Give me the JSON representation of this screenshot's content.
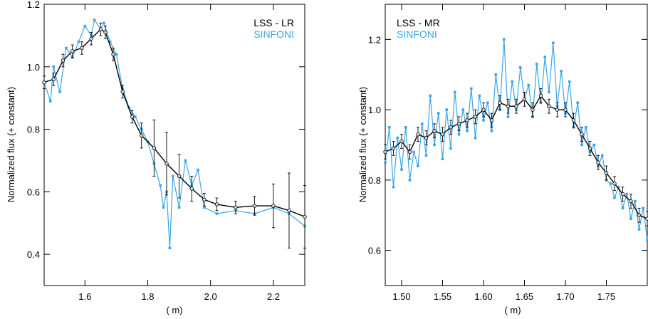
{
  "colors": {
    "lss": "#000000",
    "sinfoni": "#3aa6e6",
    "lss_marker_fill": "#d8d8d8"
  },
  "chart_data": [
    {
      "type": "line",
      "ylabel": "Normalized flux (+ constant)",
      "xlabel": "(  m)",
      "xlim": [
        1.47,
        2.3
      ],
      "ylim": [
        0.3,
        1.2
      ],
      "xticks": [
        1.6,
        1.8,
        2.0,
        2.2
      ],
      "xtick_labels": [
        "1.6",
        "1.8",
        "2.0",
        "2.2"
      ],
      "yticks": [
        0.4,
        0.6,
        0.8,
        1.0,
        1.2
      ],
      "ytick_labels": [
        "0.4",
        "0.6",
        "0.8",
        "1.0",
        "1.2"
      ],
      "legend_position": "top-right",
      "legend": [
        "LSS - LR",
        "SINFONI"
      ],
      "series": [
        {
          "name": "LSS - LR",
          "x": [
            1.47,
            1.5,
            1.53,
            1.56,
            1.59,
            1.62,
            1.65,
            1.665,
            1.69,
            1.72,
            1.75,
            1.78,
            1.82,
            1.86,
            1.9,
            1.94,
            1.98,
            2.02,
            2.08,
            2.14,
            2.2,
            2.25,
            2.3
          ],
          "y": [
            0.95,
            0.96,
            1.02,
            1.05,
            1.06,
            1.09,
            1.12,
            1.11,
            1.04,
            0.92,
            0.84,
            0.78,
            0.74,
            0.69,
            0.65,
            0.61,
            0.575,
            0.56,
            0.55,
            0.555,
            0.555,
            0.54,
            0.52
          ],
          "yerr": [
            0.02,
            0.02,
            0.02,
            0.02,
            0.02,
            0.02,
            0.02,
            0.02,
            0.02,
            0.02,
            0.02,
            0.04,
            0.09,
            0.1,
            0.07,
            0.04,
            0.02,
            0.02,
            0.02,
            0.03,
            0.07,
            0.12,
            0.1
          ]
        },
        {
          "name": "SINFONI",
          "x": [
            1.47,
            1.49,
            1.5,
            1.52,
            1.54,
            1.56,
            1.58,
            1.6,
            1.62,
            1.63,
            1.65,
            1.66,
            1.68,
            1.7,
            1.72,
            1.74,
            1.76,
            1.78,
            1.8,
            1.82,
            1.84,
            1.85,
            1.86,
            1.87,
            1.88,
            1.9,
            1.92,
            1.94,
            1.96,
            1.98,
            2.02,
            2.08,
            2.14,
            2.2,
            2.25,
            2.3
          ],
          "y": [
            0.95,
            0.89,
            1.0,
            0.92,
            1.06,
            1.03,
            1.08,
            1.13,
            1.1,
            1.15,
            1.12,
            1.14,
            1.08,
            1.04,
            0.93,
            0.87,
            0.84,
            0.8,
            0.76,
            0.69,
            0.62,
            0.55,
            0.6,
            0.42,
            0.65,
            0.55,
            0.7,
            0.62,
            0.67,
            0.55,
            0.53,
            0.54,
            0.53,
            0.55,
            0.53,
            0.49
          ]
        }
      ]
    },
    {
      "type": "line",
      "ylabel": "Normalized flux (+ constant)",
      "xlabel": "(  m)",
      "xlim": [
        1.48,
        1.8
      ],
      "ylim": [
        0.5,
        1.3
      ],
      "xticks": [
        1.5,
        1.55,
        1.6,
        1.65,
        1.7,
        1.75
      ],
      "xtick_labels": [
        "1.50",
        "1.55",
        "1.60",
        "1.65",
        "1.70",
        "1.75"
      ],
      "yticks": [
        0.6,
        0.8,
        1.0,
        1.2
      ],
      "ytick_labels": [
        "0.6",
        "0.8",
        "1.0",
        "1.2"
      ],
      "legend_position": "top-left",
      "legend": [
        "LSS - MR",
        "SINFONI"
      ],
      "series": [
        {
          "name": "LSS - MR",
          "x": [
            1.48,
            1.49,
            1.5,
            1.51,
            1.52,
            1.53,
            1.54,
            1.55,
            1.56,
            1.57,
            1.58,
            1.59,
            1.6,
            1.61,
            1.62,
            1.63,
            1.64,
            1.65,
            1.66,
            1.67,
            1.68,
            1.69,
            1.7,
            1.71,
            1.72,
            1.73,
            1.74,
            1.75,
            1.76,
            1.77,
            1.78,
            1.79,
            1.8
          ],
          "y": [
            0.88,
            0.89,
            0.91,
            0.88,
            0.93,
            0.92,
            0.94,
            0.93,
            0.95,
            0.96,
            0.97,
            0.98,
            1.0,
            0.97,
            1.02,
            1.01,
            1.01,
            1.03,
            1.0,
            1.04,
            1.01,
            1.0,
            1.0,
            0.97,
            0.93,
            0.89,
            0.85,
            0.82,
            0.79,
            0.76,
            0.74,
            0.7,
            0.69
          ],
          "yerr": [
            0.02,
            0.02,
            0.02,
            0.02,
            0.02,
            0.02,
            0.02,
            0.02,
            0.02,
            0.02,
            0.02,
            0.02,
            0.02,
            0.02,
            0.02,
            0.02,
            0.02,
            0.02,
            0.02,
            0.02,
            0.02,
            0.02,
            0.02,
            0.02,
            0.02,
            0.02,
            0.02,
            0.02,
            0.02,
            0.02,
            0.02,
            0.02,
            0.02
          ]
        },
        {
          "name": "SINFONI",
          "x": [
            1.48,
            1.485,
            1.49,
            1.495,
            1.5,
            1.505,
            1.51,
            1.515,
            1.52,
            1.525,
            1.53,
            1.535,
            1.54,
            1.545,
            1.55,
            1.555,
            1.56,
            1.565,
            1.57,
            1.575,
            1.58,
            1.585,
            1.59,
            1.595,
            1.6,
            1.605,
            1.61,
            1.615,
            1.62,
            1.625,
            1.63,
            1.635,
            1.64,
            1.645,
            1.65,
            1.655,
            1.66,
            1.665,
            1.67,
            1.675,
            1.68,
            1.685,
            1.69,
            1.695,
            1.7,
            1.705,
            1.71,
            1.715,
            1.72,
            1.725,
            1.73,
            1.735,
            1.74,
            1.745,
            1.75,
            1.755,
            1.76,
            1.765,
            1.77,
            1.775,
            1.78,
            1.785,
            1.79,
            1.795,
            1.8
          ],
          "y": [
            0.85,
            0.95,
            0.78,
            0.92,
            0.83,
            0.95,
            0.8,
            0.88,
            0.84,
            0.96,
            0.87,
            1.04,
            0.9,
            0.99,
            0.86,
            1.0,
            0.89,
            1.05,
            0.93,
            1.0,
            0.94,
            1.06,
            0.92,
            1.04,
            0.97,
            1.02,
            0.94,
            1.1,
            1.0,
            1.2,
            0.98,
            1.08,
            1.0,
            1.12,
            1.03,
            1.07,
            0.98,
            1.13,
            1.02,
            1.15,
            1.05,
            1.19,
            1.01,
            1.11,
            0.99,
            1.08,
            0.95,
            1.02,
            0.9,
            0.95,
            0.88,
            0.9,
            0.84,
            0.87,
            0.8,
            0.79,
            0.75,
            0.78,
            0.72,
            0.76,
            0.69,
            0.74,
            0.66,
            0.72,
            0.63
          ]
        }
      ]
    }
  ]
}
